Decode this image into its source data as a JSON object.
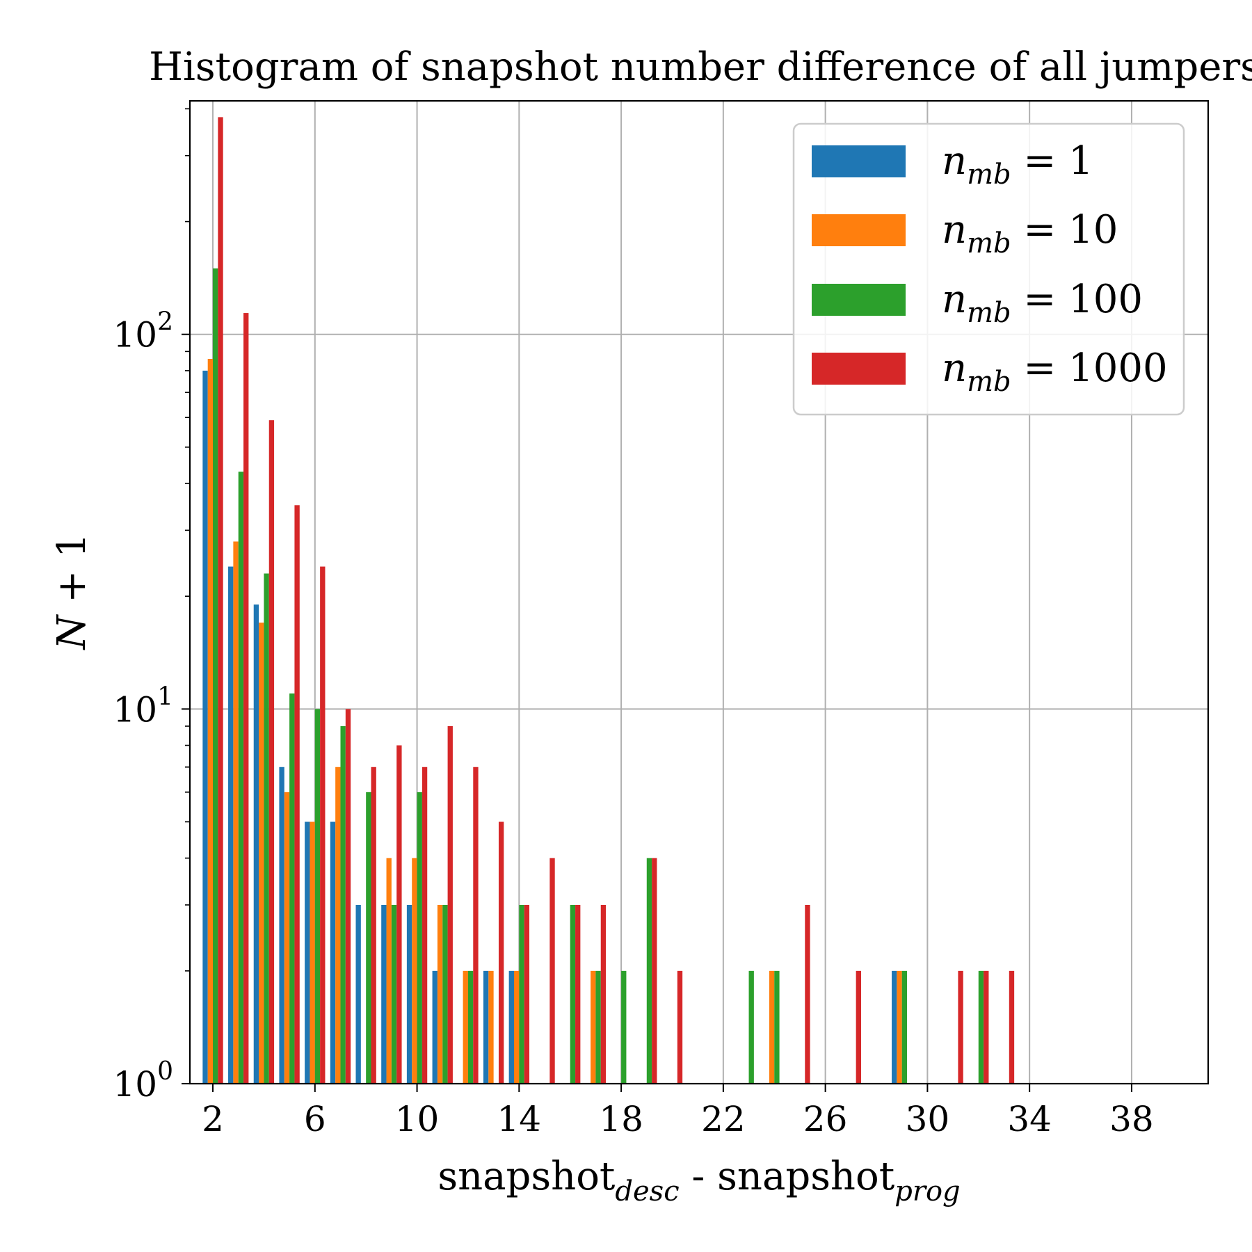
{
  "chart_data": {
    "type": "bar",
    "title": "Histogram of snapshot number difference of all jumpers",
    "xlabel": {
      "base1": "snapshot",
      "sub1": "desc",
      "mid": " - ",
      "base2": "snapshot",
      "sub2": "prog"
    },
    "ylabel": {
      "var": "N",
      "rest": " + 1"
    },
    "yscale": "log",
    "ylim": [
      1,
      420
    ],
    "xlim": [
      1.1,
      41.0
    ],
    "x_ticks": [
      2,
      6,
      10,
      14,
      18,
      22,
      26,
      30,
      34,
      38
    ],
    "y_ticks": [
      {
        "value": 1,
        "base": "10",
        "exp": "0"
      },
      {
        "value": 10,
        "base": "10",
        "exp": "1"
      },
      {
        "value": 100,
        "base": "10",
        "exp": "2"
      }
    ],
    "grid": true,
    "legend_position": "top-right",
    "bins": [
      2,
      3,
      4,
      5,
      6,
      7,
      8,
      9,
      10,
      11,
      12,
      13,
      14,
      15,
      16,
      17,
      18,
      19,
      20,
      21,
      22,
      23,
      24,
      25,
      26,
      27,
      28,
      29,
      30,
      31,
      32,
      33
    ],
    "series": [
      {
        "name_base": "n",
        "name_sub": "mb",
        "name_rest": " = 1",
        "color": "#1f77b4",
        "values": [
          80,
          24,
          19,
          7,
          5,
          5,
          3,
          3,
          3,
          2,
          0,
          2,
          2,
          0,
          0,
          0,
          0,
          0,
          0,
          0,
          0,
          0,
          0,
          0,
          0,
          0,
          0,
          2,
          0,
          0,
          0,
          0
        ]
      },
      {
        "name_base": "n",
        "name_sub": "mb",
        "name_rest": " = 10",
        "color": "#ff7f0e",
        "values": [
          86,
          28,
          17,
          6,
          5,
          7,
          0,
          4,
          4,
          3,
          2,
          2,
          2,
          0,
          0,
          2,
          0,
          0,
          0,
          0,
          0,
          0,
          2,
          0,
          0,
          0,
          0,
          2,
          0,
          0,
          0,
          0
        ]
      },
      {
        "name_base": "n",
        "name_sub": "mb",
        "name_rest": " = 100",
        "color": "#2ca02c",
        "values": [
          150,
          43,
          23,
          11,
          10,
          9,
          6,
          3,
          6,
          3,
          2,
          0,
          3,
          0,
          3,
          2,
          2,
          4,
          0,
          0,
          0,
          2,
          2,
          0,
          0,
          0,
          0,
          2,
          0,
          0,
          2,
          0
        ]
      },
      {
        "name_base": "n",
        "name_sub": "mb",
        "name_rest": " = 1000",
        "color": "#d62728",
        "values": [
          380,
          114,
          59,
          35,
          24,
          10,
          7,
          8,
          7,
          9,
          7,
          5,
          3,
          4,
          3,
          3,
          0,
          4,
          2,
          0,
          0,
          0,
          0,
          3,
          0,
          2,
          0,
          0,
          0,
          2,
          2,
          2
        ]
      }
    ]
  }
}
